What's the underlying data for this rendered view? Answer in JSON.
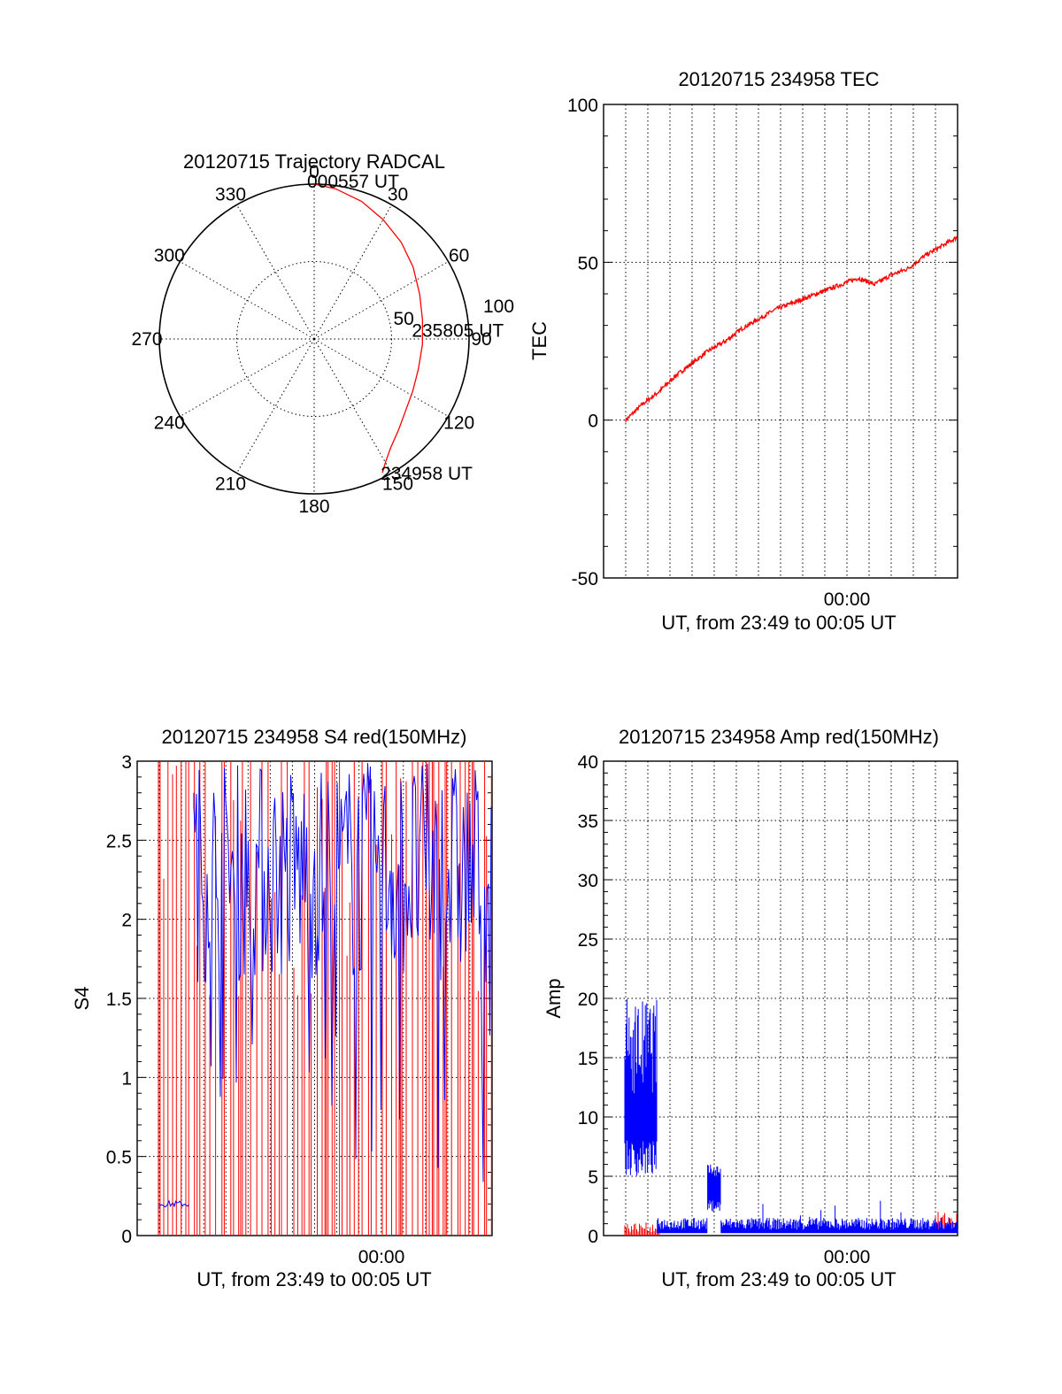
{
  "chart_data": [
    {
      "type": "polar",
      "title": "20120715 Trajectory RADCAL",
      "azimuth_labels": [
        "0",
        "30",
        "60",
        "90",
        "120",
        "150",
        "180",
        "210",
        "240",
        "270",
        "300",
        "330"
      ],
      "elevation_ring_labels": [
        "50",
        "100"
      ],
      "grid": true,
      "trajectory": {
        "color": "#ff0000",
        "start_label": "234958 UT",
        "mid_label": "235805 UT",
        "end_label": "000557 UT",
        "points": [
          {
            "azimuth": 153,
            "zenith": 97
          },
          {
            "azimuth": 150,
            "zenith": 92
          },
          {
            "azimuth": 145,
            "zenith": 86
          },
          {
            "azimuth": 137,
            "zenith": 80
          },
          {
            "azimuth": 128,
            "zenith": 75
          },
          {
            "azimuth": 118,
            "zenith": 72
          },
          {
            "azimuth": 106,
            "zenith": 70
          },
          {
            "azimuth": 93,
            "zenith": 70
          },
          {
            "azimuth": 80,
            "zenith": 71
          },
          {
            "azimuth": 67,
            "zenith": 74
          },
          {
            "azimuth": 54,
            "zenith": 79
          },
          {
            "azimuth": 42,
            "zenith": 84
          },
          {
            "azimuth": 30,
            "zenith": 89
          },
          {
            "azimuth": 19,
            "zenith": 94
          },
          {
            "azimuth": 8,
            "zenith": 98
          },
          {
            "azimuth": 0,
            "zenith": 100
          }
        ]
      }
    },
    {
      "type": "line",
      "title": "20120715 234958 TEC",
      "ylabel": "TEC",
      "xlabel": "UT, from 23:49 to 00:05 UT",
      "xtick_labels": [
        "00:00"
      ],
      "yticks": [
        "-50",
        "0",
        "50",
        "100"
      ],
      "ylim": [
        -50,
        100
      ],
      "grid": true,
      "series": [
        {
          "color": "#ff0000",
          "x_minutes": [
            0,
            1,
            2,
            3,
            4,
            5,
            6,
            7,
            8,
            9,
            10,
            11,
            12,
            13,
            14,
            15,
            16,
            17,
            18,
            19,
            20
          ],
          "values": [
            0,
            5,
            9,
            14,
            18,
            22,
            25,
            29,
            32,
            35,
            37,
            39,
            41,
            43,
            45,
            43,
            46,
            48,
            52,
            55,
            58
          ]
        }
      ]
    },
    {
      "type": "line",
      "title": "20120715 234958 S4 red(150MHz)",
      "ylabel": "S4",
      "xlabel": "UT, from 23:49 to 00:05 UT",
      "xtick_labels": [
        "00:00"
      ],
      "yticks": [
        "0",
        "0.5",
        "1",
        "1.5",
        "2",
        "2.5",
        "3"
      ],
      "ylim": [
        0,
        3
      ],
      "grid": true,
      "series": [
        {
          "color": "#ff0000"
        },
        {
          "color": "#0000ff"
        }
      ]
    },
    {
      "type": "line",
      "title": "20120715 234958 Amp red(150MHz)",
      "ylabel": "Amp",
      "xlabel": "UT, from 23:49 to 00:05 UT",
      "xtick_labels": [
        "00:00"
      ],
      "yticks": [
        "0",
        "5",
        "10",
        "15",
        "20",
        "25",
        "30",
        "35",
        "40"
      ],
      "ylim": [
        0,
        40
      ],
      "grid": true,
      "series": [
        {
          "color": "#ff0000"
        },
        {
          "color": "#0000ff"
        }
      ]
    }
  ]
}
